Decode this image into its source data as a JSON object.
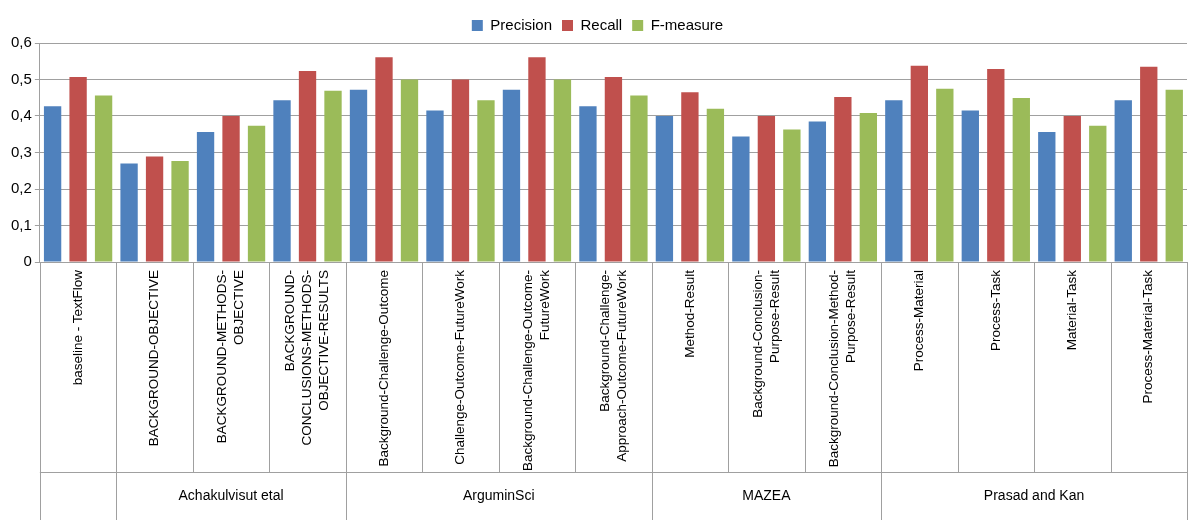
{
  "chart_data": {
    "type": "bar",
    "categories": [
      "baseline - TextFlow",
      "BACKGROUND-OBJECTIVE",
      "BACKGROUND-METHODS-OBJECTIVE",
      "BACKGROUND-CONCLUSIONS-METHODS-OBJECTIVE-RESULTS",
      "Background-Challenge-Outcome",
      "Challenge-Outcome-FutureWork",
      "Background-Challenge-Outcome-FutureWork",
      "Background-Challenge-Approach-Outcome-FutureWork",
      "Method-Result",
      "Background-Conclusion-Purpose-Result",
      "Background-Conclusion-Method-Purpose-Result",
      "Process-Material",
      "Process-Task",
      "Material-Task",
      "Process-Material-Task"
    ],
    "series": [
      {
        "name": "Precision",
        "color": "#4f81bd",
        "values": [
          0.427,
          0.27,
          0.356,
          0.443,
          0.472,
          0.415,
          0.472,
          0.427,
          0.4,
          0.344,
          0.385,
          0.443,
          0.415,
          0.356,
          0.443
        ]
      },
      {
        "name": "Recall",
        "color": "#c0504d",
        "values": [
          0.507,
          0.289,
          0.4,
          0.523,
          0.561,
          0.5,
          0.561,
          0.507,
          0.465,
          0.4,
          0.452,
          0.538,
          0.529,
          0.4,
          0.535
        ]
      },
      {
        "name": "F-measure",
        "color": "#9bbb59",
        "values": [
          0.456,
          0.277,
          0.373,
          0.469,
          0.5,
          0.443,
          0.5,
          0.456,
          0.42,
          0.363,
          0.408,
          0.475,
          0.449,
          0.373,
          0.472
        ]
      }
    ],
    "ylim": [
      0,
      0.6
    ],
    "yticks": [
      {
        "value": 0,
        "label": "0"
      },
      {
        "value": 0.1,
        "label": "0,1"
      },
      {
        "value": 0.2,
        "label": "0,2"
      },
      {
        "value": 0.3,
        "label": "0,3"
      },
      {
        "value": 0.4,
        "label": "0,4"
      },
      {
        "value": 0.5,
        "label": "0,5"
      },
      {
        "value": 0.6,
        "label": "0,6"
      }
    ],
    "grid": "y",
    "legend": "top",
    "annotations": [
      "Achakulvisut etal",
      "ArguminSci",
      "MAZEA",
      "Prasad and Kan"
    ]
  }
}
